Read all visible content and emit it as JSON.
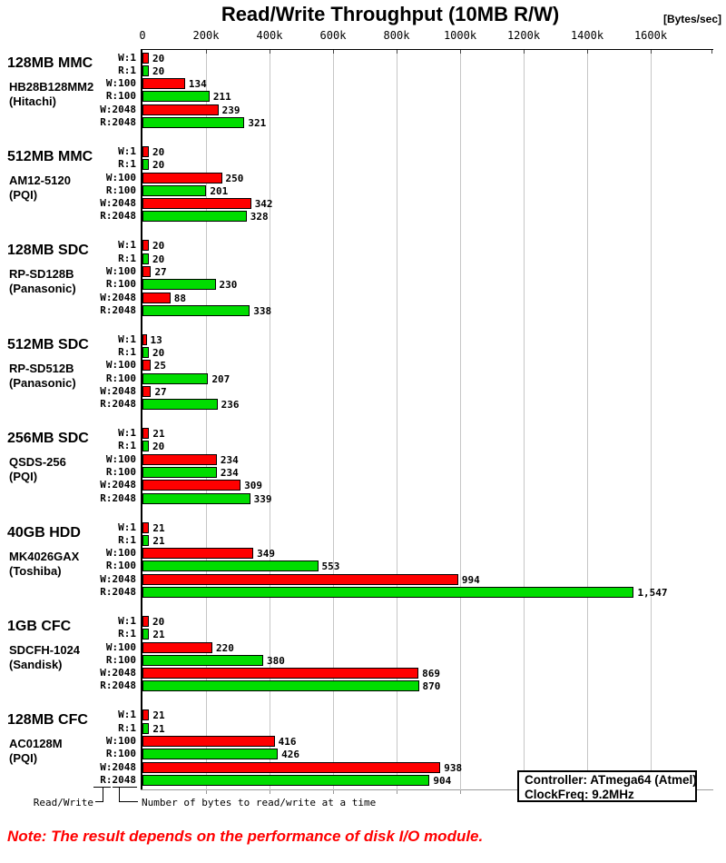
{
  "title": "Read/Write Throughput (10MB R/W)",
  "units_label": "[Bytes/sec]",
  "note": "Note: The result depends on the performance of disk I/O module.",
  "info_box": {
    "controller": "Controller: ATmega64 (Atmel)",
    "clockfreq": "ClockFreq: 9.2MHz"
  },
  "callouts": {
    "read_write": "Read/Write",
    "bytes_at_a_time": "Number of bytes to read/write at a time"
  },
  "chart_data": {
    "type": "bar",
    "orientation": "horizontal",
    "title": "Read/Write Throughput (10MB R/W)",
    "xlabel": "[Bytes/sec]",
    "x_ticks": [
      "0",
      "200k",
      "400k",
      "600k",
      "800k",
      "1000k",
      "1200k",
      "1400k",
      "1600k"
    ],
    "x_tick_values_k": [
      0,
      200,
      400,
      600,
      800,
      1000,
      1200,
      1400,
      1600
    ],
    "xlim_k": [
      0,
      1800
    ],
    "grid": true,
    "bar_labels": [
      "W:1",
      "R:1",
      "W:100",
      "R:100",
      "W:2048",
      "R:2048"
    ],
    "colors": {
      "write": "#ff0000",
      "read": "#00dd00"
    },
    "groups": [
      {
        "name": "128MB MMC",
        "model": "HB28B128MM2",
        "maker": "(Hitachi)",
        "values_k": [
          20,
          20,
          134,
          211,
          239,
          321
        ]
      },
      {
        "name": "512MB MMC",
        "model": "AM12-5120",
        "maker": "(PQI)",
        "values_k": [
          20,
          20,
          250,
          201,
          342,
          328
        ]
      },
      {
        "name": "128MB SDC",
        "model": "RP-SD128B",
        "maker": "(Panasonic)",
        "values_k": [
          20,
          20,
          27,
          230,
          88,
          338
        ]
      },
      {
        "name": "512MB SDC",
        "model": "RP-SD512B",
        "maker": "(Panasonic)",
        "values_k": [
          13,
          20,
          25,
          207,
          27,
          236
        ]
      },
      {
        "name": "256MB SDC",
        "model": "QSDS-256",
        "maker": "(PQI)",
        "values_k": [
          21,
          20,
          234,
          234,
          309,
          339
        ]
      },
      {
        "name": "40GB HDD",
        "model": "MK4026GAX",
        "maker": "(Toshiba)",
        "values_k": [
          21,
          21,
          349,
          553,
          994,
          1547
        ]
      },
      {
        "name": "1GB CFC",
        "model": "SDCFH-1024",
        "maker": "(Sandisk)",
        "values_k": [
          20,
          21,
          220,
          380,
          869,
          870
        ]
      },
      {
        "name": "128MB CFC",
        "model": "AC0128M",
        "maker": "(PQI)",
        "values_k": [
          21,
          21,
          416,
          426,
          938,
          904
        ]
      }
    ]
  }
}
